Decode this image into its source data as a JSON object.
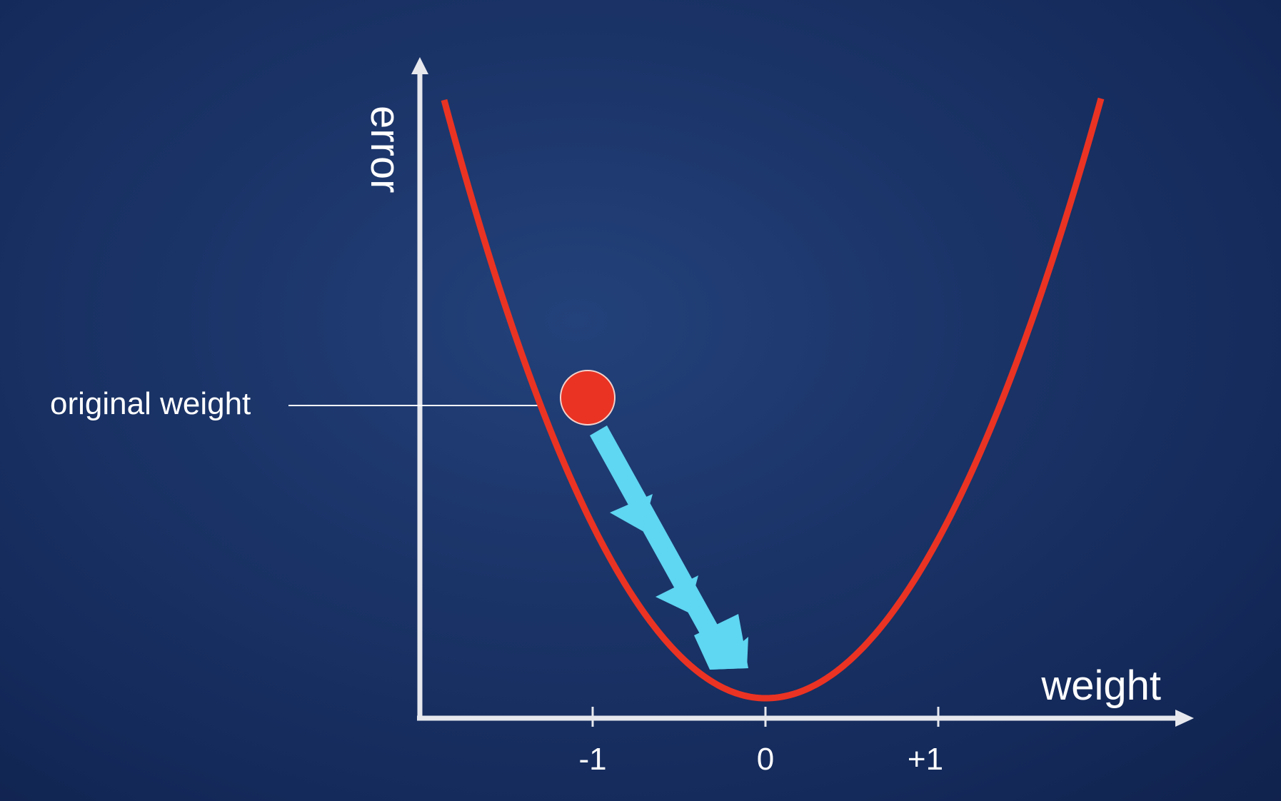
{
  "diagram": {
    "y_axis_label": "error",
    "x_axis_label": "weight",
    "marker_label": "original weight",
    "ticks": [
      {
        "label": "-1",
        "value": -1
      },
      {
        "label": "0",
        "value": 0
      },
      {
        "label": "+1",
        "value": 1
      }
    ],
    "point_weight": -1,
    "colors": {
      "background": "#1b3468",
      "curve": "#ea3323",
      "point": "#ea3323",
      "arrow": "#5fd6f2",
      "axis": "#e6e8ee"
    },
    "curve_shape": "parabola"
  }
}
